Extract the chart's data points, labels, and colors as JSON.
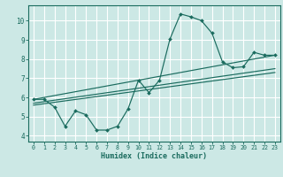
{
  "xlabel": "Humidex (Indice chaleur)",
  "ylabel": "",
  "xlim": [
    -0.5,
    23.5
  ],
  "ylim": [
    3.7,
    10.8
  ],
  "yticks": [
    4,
    5,
    6,
    7,
    8,
    9,
    10
  ],
  "xticks": [
    0,
    1,
    2,
    3,
    4,
    5,
    6,
    7,
    8,
    9,
    10,
    11,
    12,
    13,
    14,
    15,
    16,
    17,
    18,
    19,
    20,
    21,
    22,
    23
  ],
  "bg_color": "#cce8e5",
  "line_color": "#1a6b5e",
  "grid_color": "#ffffff",
  "main_line": {
    "x": [
      0,
      1,
      2,
      3,
      4,
      5,
      6,
      7,
      8,
      9,
      10,
      11,
      12,
      13,
      14,
      15,
      16,
      17,
      18,
      19,
      20,
      21,
      22,
      23
    ],
    "y": [
      5.9,
      5.9,
      5.5,
      4.5,
      5.3,
      5.1,
      4.3,
      4.3,
      4.5,
      5.4,
      6.9,
      6.25,
      6.9,
      9.05,
      10.35,
      10.2,
      10.0,
      9.35,
      7.85,
      7.55,
      7.6,
      8.35,
      8.2,
      8.2
    ]
  },
  "trend_lines": [
    {
      "x": [
        0,
        23
      ],
      "y": [
        5.9,
        8.2
      ]
    },
    {
      "x": [
        0,
        23
      ],
      "y": [
        5.7,
        7.5
      ]
    },
    {
      "x": [
        0,
        23
      ],
      "y": [
        5.6,
        7.3
      ]
    }
  ]
}
